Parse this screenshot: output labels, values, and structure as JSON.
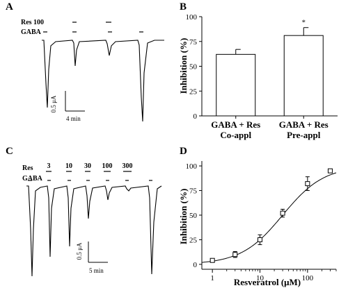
{
  "panels": {
    "A": {
      "label": "A",
      "res_label": "Res 100",
      "gaba_label": "GABA",
      "scale_current": "0.5 μA",
      "scale_time": "4 min"
    },
    "B": {
      "label": "B",
      "star": "*"
    },
    "C": {
      "label": "C",
      "res_label": "Res",
      "gaba_label": "GABA",
      "concentrations": [
        "3",
        "10",
        "30",
        "100",
        "300"
      ],
      "scale_current": "0.5 μA",
      "scale_time": "5 min"
    },
    "D": {
      "label": "D"
    }
  },
  "chart_data": [
    {
      "panel": "B",
      "type": "bar",
      "categories": [
        {
          "line1": "GABA + Res",
          "line2": "Co-appl"
        },
        {
          "line1": "GABA + Res",
          "line2": "Pre-appl"
        }
      ],
      "values": [
        62,
        81
      ],
      "errors": [
        5,
        8
      ],
      "annotations": [
        "",
        "*"
      ],
      "ylabel": "Inhibition (%)",
      "ylim": [
        0,
        100
      ],
      "yticks": [
        "0",
        "25",
        "50",
        "75",
        "100"
      ],
      "bar_color": "#ffffff",
      "grid": false
    },
    {
      "panel": "D",
      "type": "scatter",
      "xscale": "log",
      "x": [
        1,
        3,
        10,
        30,
        100,
        300
      ],
      "y": [
        4,
        10,
        25,
        52,
        82,
        95
      ],
      "errors": [
        1.5,
        3,
        5,
        4,
        7,
        1.5
      ],
      "fit": {
        "kind": "hill",
        "ic50": 30,
        "hill": 1.0
      },
      "xlabel": "Resveratrol (μM)",
      "ylabel": "Inhibition (%)",
      "xlim": [
        0.6,
        400
      ],
      "ylim": [
        -5,
        105
      ],
      "xticks": [
        "1",
        "10",
        "100"
      ],
      "yticks": [
        "0",
        "25",
        "50",
        "75",
        "100"
      ],
      "marker": "open-square",
      "grid": false
    }
  ]
}
